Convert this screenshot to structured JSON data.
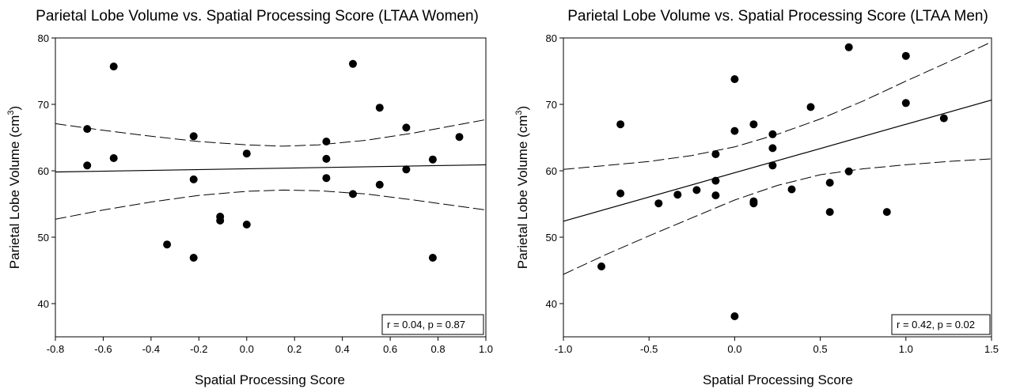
{
  "chart_data": [
    {
      "type": "scatter",
      "title": "Parietal Lobe Volume vs. Spatial Processing Score (LTAA Women)",
      "xlabel": "Spatial Processing Score",
      "ylabel_main": "Parietal Lobe Volume (cm",
      "ylabel_sup": "3",
      "ylabel_close": ")",
      "xlim": [
        -0.8,
        1.0
      ],
      "ylim": [
        35,
        80
      ],
      "xticks": [
        -0.8,
        -0.6,
        -0.4,
        -0.2,
        0.0,
        0.2,
        0.4,
        0.6,
        0.8,
        1.0
      ],
      "xtick_labels": [
        "-0.8",
        "-0.6",
        "-0.4",
        "-0.2",
        "0.0",
        "0.2",
        "0.4",
        "0.6",
        "0.8",
        "1.0"
      ],
      "yticks": [
        40,
        50,
        60,
        70,
        80
      ],
      "ytick_labels": [
        "40",
        "50",
        "60",
        "70",
        "80"
      ],
      "stat_text": "r = 0.04, p = 0.87",
      "points": [
        {
          "x": -0.667,
          "y": 66.3
        },
        {
          "x": -0.667,
          "y": 60.8
        },
        {
          "x": -0.556,
          "y": 75.7
        },
        {
          "x": -0.556,
          "y": 61.9
        },
        {
          "x": -0.333,
          "y": 48.9
        },
        {
          "x": -0.222,
          "y": 65.2
        },
        {
          "x": -0.222,
          "y": 58.7
        },
        {
          "x": -0.222,
          "y": 46.9
        },
        {
          "x": -0.111,
          "y": 53.1
        },
        {
          "x": -0.111,
          "y": 52.5
        },
        {
          "x": 0.0,
          "y": 62.6
        },
        {
          "x": 0.0,
          "y": 51.9
        },
        {
          "x": 0.333,
          "y": 64.4
        },
        {
          "x": 0.333,
          "y": 61.8
        },
        {
          "x": 0.333,
          "y": 58.9
        },
        {
          "x": 0.444,
          "y": 76.1
        },
        {
          "x": 0.444,
          "y": 56.5
        },
        {
          "x": 0.556,
          "y": 69.5
        },
        {
          "x": 0.556,
          "y": 57.9
        },
        {
          "x": 0.667,
          "y": 66.5
        },
        {
          "x": 0.667,
          "y": 60.2
        },
        {
          "x": 0.778,
          "y": 61.7
        },
        {
          "x": 0.778,
          "y": 46.9
        },
        {
          "x": 0.889,
          "y": 65.1
        }
      ],
      "fit": {
        "intercept": 60.3,
        "slope": 0.6
      },
      "confidence_band": {
        "x": [
          -0.8,
          -0.6,
          -0.4,
          -0.2,
          0.0,
          0.15,
          0.3,
          0.5,
          0.7,
          1.0
        ],
        "upper": [
          67.1,
          66.1,
          65.2,
          64.4,
          63.9,
          63.7,
          63.9,
          64.6,
          65.7,
          67.7
        ],
        "lower": [
          52.7,
          54.1,
          55.3,
          56.3,
          56.9,
          57.1,
          57.0,
          56.5,
          55.6,
          54.1
        ]
      }
    },
    {
      "type": "scatter",
      "title": "Parietal Lobe Volume vs. Spatial Processing Score (LTAA Men)",
      "xlabel": "Spatial Processing Score",
      "ylabel_main": "Parietal Lobe Volume (cm",
      "ylabel_sup": "3",
      "ylabel_close": ")",
      "xlim": [
        -1.0,
        1.5
      ],
      "ylim": [
        35,
        80
      ],
      "xticks": [
        -1.0,
        -0.5,
        0.0,
        0.5,
        1.0,
        1.5
      ],
      "xtick_labels": [
        "-1.0",
        "-0.5",
        "0.0",
        "0.5",
        "1.0",
        "1.5"
      ],
      "yticks": [
        40,
        50,
        60,
        70,
        80
      ],
      "ytick_labels": [
        "40",
        "50",
        "60",
        "70",
        "80"
      ],
      "stat_text": "r = 0.42, p = 0.02",
      "points": [
        {
          "x": -0.778,
          "y": 45.6
        },
        {
          "x": -0.667,
          "y": 67.0
        },
        {
          "x": -0.667,
          "y": 56.6
        },
        {
          "x": -0.444,
          "y": 55.1
        },
        {
          "x": -0.333,
          "y": 56.4
        },
        {
          "x": -0.222,
          "y": 57.1
        },
        {
          "x": -0.111,
          "y": 62.5
        },
        {
          "x": -0.111,
          "y": 58.5
        },
        {
          "x": -0.111,
          "y": 56.3
        },
        {
          "x": 0.0,
          "y": 73.8
        },
        {
          "x": 0.0,
          "y": 66.0
        },
        {
          "x": 0.0,
          "y": 38.1
        },
        {
          "x": 0.111,
          "y": 67.0
        },
        {
          "x": 0.111,
          "y": 55.4
        },
        {
          "x": 0.111,
          "y": 55.1
        },
        {
          "x": 0.222,
          "y": 65.5
        },
        {
          "x": 0.222,
          "y": 63.4
        },
        {
          "x": 0.222,
          "y": 60.8
        },
        {
          "x": 0.333,
          "y": 57.2
        },
        {
          "x": 0.444,
          "y": 69.6
        },
        {
          "x": 0.556,
          "y": 58.2
        },
        {
          "x": 0.556,
          "y": 53.8
        },
        {
          "x": 0.667,
          "y": 78.6
        },
        {
          "x": 0.667,
          "y": 59.9
        },
        {
          "x": 0.889,
          "y": 53.8
        },
        {
          "x": 1.0,
          "y": 77.3
        },
        {
          "x": 1.0,
          "y": 70.2
        },
        {
          "x": 1.222,
          "y": 67.9
        }
      ],
      "fit": {
        "intercept": 59.7,
        "slope": 7.3
      },
      "confidence_band": {
        "x": [
          -1.0,
          -0.75,
          -0.5,
          -0.25,
          0.0,
          0.25,
          0.5,
          0.75,
          1.0,
          1.25,
          1.5
        ],
        "upper": [
          60.2,
          60.8,
          61.4,
          62.3,
          63.6,
          65.5,
          67.8,
          70.5,
          73.5,
          76.4,
          79.4
        ],
        "lower": [
          44.4,
          47.4,
          50.2,
          52.9,
          55.6,
          57.8,
          59.4,
          60.3,
          60.9,
          61.4,
          61.8
        ]
      }
    }
  ]
}
